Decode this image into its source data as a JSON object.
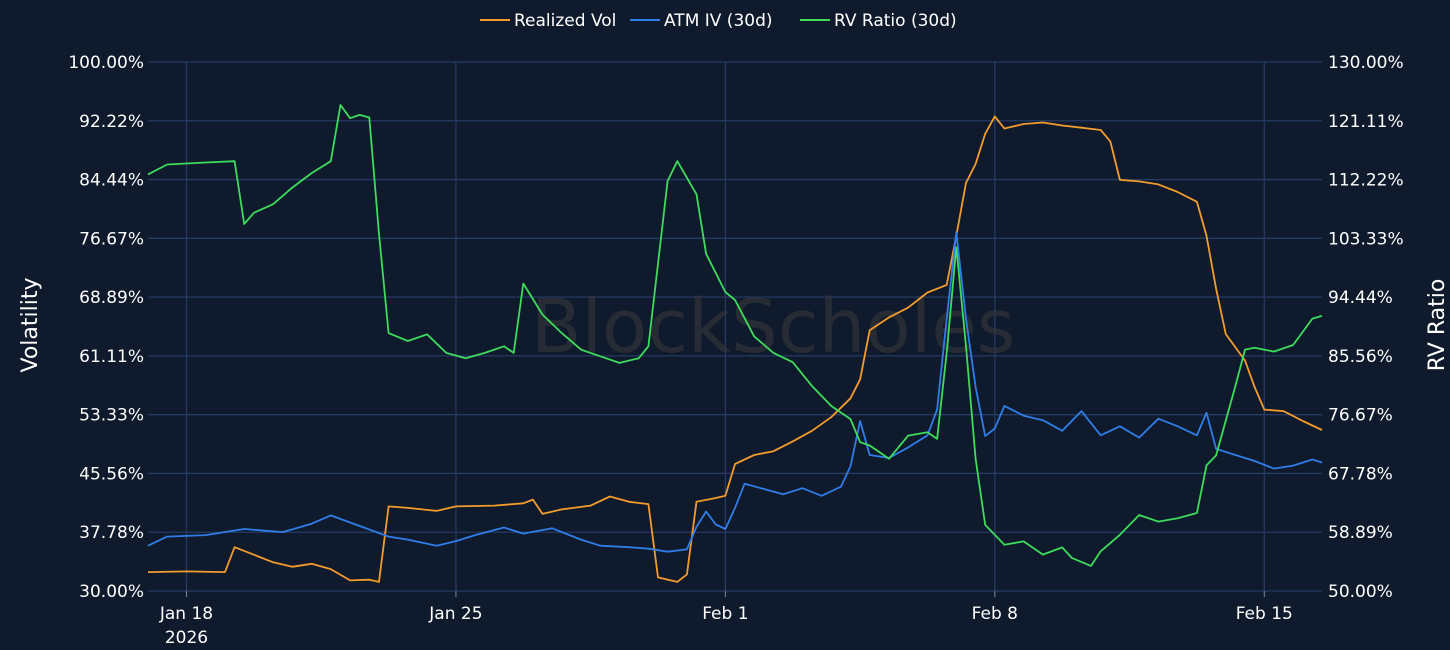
{
  "watermark": "BlockScholes",
  "chart_data": {
    "type": "line",
    "legend_position": "top-center",
    "grid": true,
    "x_range": [
      "2026-01-17T00:00",
      "2026-02-16T12:00"
    ],
    "x_ticks": [
      {
        "date": "2026-01-18",
        "label": "Jan 18",
        "sublabel": "2026"
      },
      {
        "date": "2026-01-25",
        "label": "Jan 25"
      },
      {
        "date": "2026-02-01",
        "label": "Feb 1"
      },
      {
        "date": "2026-02-08",
        "label": "Feb 8"
      },
      {
        "date": "2026-02-15",
        "label": "Feb 15"
      }
    ],
    "y_left": {
      "label": "Volatility",
      "range": [
        30,
        100
      ],
      "ticks": [
        "30.00%",
        "37.78%",
        "45.56%",
        "53.33%",
        "61.11%",
        "68.89%",
        "76.67%",
        "84.44%",
        "92.22%",
        "100.00%"
      ]
    },
    "y_right": {
      "label": "RV Ratio",
      "range": [
        50,
        130
      ],
      "ticks": [
        "50.00%",
        "58.89%",
        "67.78%",
        "76.67%",
        "85.56%",
        "94.44%",
        "103.33%",
        "112.22%",
        "121.11%",
        "130.00%"
      ]
    },
    "series": [
      {
        "name": "Realized Vol",
        "axis": "left",
        "color": "#f39c2c",
        "points": [
          [
            "2026-01-17T00:00",
            32.5
          ],
          [
            "2026-01-18T00:00",
            32.6
          ],
          [
            "2026-01-19T00:00",
            32.5
          ],
          [
            "2026-01-19T06:00",
            35.8
          ],
          [
            "2026-01-19T18:00",
            34.8
          ],
          [
            "2026-01-20T06:00",
            33.8
          ],
          [
            "2026-01-20T18:00",
            33.2
          ],
          [
            "2026-01-21T06:00",
            33.6
          ],
          [
            "2026-01-21T18:00",
            32.9
          ],
          [
            "2026-01-22T06:00",
            31.4
          ],
          [
            "2026-01-22T18:00",
            31.5
          ],
          [
            "2026-01-23T00:00",
            31.2
          ],
          [
            "2026-01-23T06:00",
            41.2
          ],
          [
            "2026-01-23T18:00",
            41.0
          ],
          [
            "2026-01-24T12:00",
            40.6
          ],
          [
            "2026-01-25T00:00",
            41.2
          ],
          [
            "2026-01-26T00:00",
            41.3
          ],
          [
            "2026-01-26T18:00",
            41.6
          ],
          [
            "2026-01-27T00:00",
            42.1
          ],
          [
            "2026-01-27T06:00",
            40.2
          ],
          [
            "2026-01-27T18:00",
            40.8
          ],
          [
            "2026-01-28T12:00",
            41.3
          ],
          [
            "2026-01-29T00:00",
            42.5
          ],
          [
            "2026-01-29T12:00",
            41.8
          ],
          [
            "2026-01-30T00:00",
            41.5
          ],
          [
            "2026-01-30T06:00",
            31.8
          ],
          [
            "2026-01-30T18:00",
            31.2
          ],
          [
            "2026-01-31T00:00",
            32.2
          ],
          [
            "2026-01-31T06:00",
            41.8
          ],
          [
            "2026-01-31T18:00",
            42.3
          ],
          [
            "2026-02-01T00:00",
            42.6
          ],
          [
            "2026-02-01T06:00",
            46.8
          ],
          [
            "2026-02-01T18:00",
            48.0
          ],
          [
            "2026-02-02T06:00",
            48.5
          ],
          [
            "2026-02-02T18:00",
            49.8
          ],
          [
            "2026-02-03T06:00",
            51.2
          ],
          [
            "2026-02-03T18:00",
            53.0
          ],
          [
            "2026-02-04T06:00",
            55.5
          ],
          [
            "2026-02-04T12:00",
            58.0
          ],
          [
            "2026-02-04T18:00",
            64.5
          ],
          [
            "2026-02-05T06:00",
            66.2
          ],
          [
            "2026-02-05T18:00",
            67.5
          ],
          [
            "2026-02-06T06:00",
            69.5
          ],
          [
            "2026-02-06T18:00",
            70.5
          ],
          [
            "2026-02-07T00:00",
            77.0
          ],
          [
            "2026-02-07T06:00",
            84.0
          ],
          [
            "2026-02-07T12:00",
            86.5
          ],
          [
            "2026-02-07T18:00",
            90.5
          ],
          [
            "2026-02-08T00:00",
            92.8
          ],
          [
            "2026-02-08T06:00",
            91.2
          ],
          [
            "2026-02-08T18:00",
            91.8
          ],
          [
            "2026-02-09T06:00",
            92.0
          ],
          [
            "2026-02-09T18:00",
            91.6
          ],
          [
            "2026-02-10T06:00",
            91.3
          ],
          [
            "2026-02-10T18:00",
            91.0
          ],
          [
            "2026-02-11T00:00",
            89.5
          ],
          [
            "2026-02-11T06:00",
            84.4
          ],
          [
            "2026-02-11T18:00",
            84.2
          ],
          [
            "2026-02-12T06:00",
            83.8
          ],
          [
            "2026-02-12T18:00",
            82.8
          ],
          [
            "2026-02-13T06:00",
            81.5
          ],
          [
            "2026-02-13T12:00",
            77.0
          ],
          [
            "2026-02-13T18:00",
            70.0
          ],
          [
            "2026-02-14T00:00",
            64.0
          ],
          [
            "2026-02-14T12:00",
            60.5
          ],
          [
            "2026-02-14T18:00",
            57.0
          ],
          [
            "2026-02-15T00:00",
            54.0
          ],
          [
            "2026-02-15T12:00",
            53.8
          ],
          [
            "2026-02-16T00:00",
            52.5
          ],
          [
            "2026-02-16T12:00",
            51.3
          ]
        ]
      },
      {
        "name": "ATM IV (30d)",
        "axis": "left",
        "color": "#2f7ee8",
        "points": [
          [
            "2026-01-17T00:00",
            36.0
          ],
          [
            "2026-01-17T12:00",
            37.2
          ],
          [
            "2026-01-18T12:00",
            37.4
          ],
          [
            "2026-01-19T12:00",
            38.2
          ],
          [
            "2026-01-20T12:00",
            37.8
          ],
          [
            "2026-01-21T06:00",
            38.9
          ],
          [
            "2026-01-21T18:00",
            40.0
          ],
          [
            "2026-01-22T12:00",
            38.6
          ],
          [
            "2026-01-23T06:00",
            37.2
          ],
          [
            "2026-01-23T18:00",
            36.8
          ],
          [
            "2026-01-24T12:00",
            36.0
          ],
          [
            "2026-01-25T00:00",
            36.6
          ],
          [
            "2026-01-25T12:00",
            37.4
          ],
          [
            "2026-01-26T06:00",
            38.4
          ],
          [
            "2026-01-26T18:00",
            37.6
          ],
          [
            "2026-01-27T12:00",
            38.3
          ],
          [
            "2026-01-28T06:00",
            36.8
          ],
          [
            "2026-01-28T18:00",
            36.0
          ],
          [
            "2026-01-29T12:00",
            35.8
          ],
          [
            "2026-01-30T00:00",
            35.6
          ],
          [
            "2026-01-30T12:00",
            35.2
          ],
          [
            "2026-01-31T00:00",
            35.5
          ],
          [
            "2026-01-31T06:00",
            38.5
          ],
          [
            "2026-01-31T12:00",
            40.5
          ],
          [
            "2026-01-31T18:00",
            38.8
          ],
          [
            "2026-02-01T00:00",
            38.2
          ],
          [
            "2026-02-01T06:00",
            41.0
          ],
          [
            "2026-02-01T12:00",
            44.2
          ],
          [
            "2026-02-02T00:00",
            43.5
          ],
          [
            "2026-02-02T12:00",
            42.8
          ],
          [
            "2026-02-03T00:00",
            43.6
          ],
          [
            "2026-02-03T12:00",
            42.6
          ],
          [
            "2026-02-04T00:00",
            43.8
          ],
          [
            "2026-02-04T06:00",
            46.5
          ],
          [
            "2026-02-04T12:00",
            52.5
          ],
          [
            "2026-02-04T18:00",
            48.0
          ],
          [
            "2026-02-05T06:00",
            47.6
          ],
          [
            "2026-02-05T18:00",
            49.0
          ],
          [
            "2026-02-06T06:00",
            50.6
          ],
          [
            "2026-02-06T12:00",
            54.0
          ],
          [
            "2026-02-06T18:00",
            66.0
          ],
          [
            "2026-02-07T00:00",
            77.5
          ],
          [
            "2026-02-07T06:00",
            66.0
          ],
          [
            "2026-02-07T12:00",
            57.0
          ],
          [
            "2026-02-07T18:00",
            50.5
          ],
          [
            "2026-02-08T00:00",
            51.5
          ],
          [
            "2026-02-08T06:00",
            54.5
          ],
          [
            "2026-02-08T18:00",
            53.2
          ],
          [
            "2026-02-09T06:00",
            52.6
          ],
          [
            "2026-02-09T18:00",
            51.2
          ],
          [
            "2026-02-10T06:00",
            53.8
          ],
          [
            "2026-02-10T18:00",
            50.6
          ],
          [
            "2026-02-11T06:00",
            51.8
          ],
          [
            "2026-02-11T18:00",
            50.3
          ],
          [
            "2026-02-12T06:00",
            52.8
          ],
          [
            "2026-02-12T18:00",
            51.8
          ],
          [
            "2026-02-13T06:00",
            50.6
          ],
          [
            "2026-02-13T12:00",
            53.6
          ],
          [
            "2026-02-13T18:00",
            48.8
          ],
          [
            "2026-02-14T06:00",
            48.0
          ],
          [
            "2026-02-14T18:00",
            47.2
          ],
          [
            "2026-02-15T06:00",
            46.2
          ],
          [
            "2026-02-15T18:00",
            46.6
          ],
          [
            "2026-02-16T06:00",
            47.4
          ],
          [
            "2026-02-16T12:00",
            47.0
          ]
        ]
      },
      {
        "name": "RV Ratio (30d)",
        "axis": "right",
        "color": "#3ddc5b",
        "points": [
          [
            "2026-01-17T00:00",
            113.0
          ],
          [
            "2026-01-17T12:00",
            114.5
          ],
          [
            "2026-01-18T12:00",
            114.8
          ],
          [
            "2026-01-19T06:00",
            115.0
          ],
          [
            "2026-01-19T12:00",
            105.5
          ],
          [
            "2026-01-19T18:00",
            107.2
          ],
          [
            "2026-01-20T06:00",
            108.5
          ],
          [
            "2026-01-20T18:00",
            111.0
          ],
          [
            "2026-01-21T06:00",
            113.2
          ],
          [
            "2026-01-21T18:00",
            115.0
          ],
          [
            "2026-01-22T00:00",
            123.5
          ],
          [
            "2026-01-22T06:00",
            121.5
          ],
          [
            "2026-01-22T12:00",
            122.0
          ],
          [
            "2026-01-22T18:00",
            121.6
          ],
          [
            "2026-01-23T00:00",
            104.0
          ],
          [
            "2026-01-23T06:00",
            89.0
          ],
          [
            "2026-01-23T18:00",
            87.8
          ],
          [
            "2026-01-24T06:00",
            88.8
          ],
          [
            "2026-01-24T18:00",
            86.0
          ],
          [
            "2026-01-25T06:00",
            85.2
          ],
          [
            "2026-01-25T18:00",
            86.0
          ],
          [
            "2026-01-26T06:00",
            87.0
          ],
          [
            "2026-01-26T12:00",
            86.0
          ],
          [
            "2026-01-26T18:00",
            96.5
          ],
          [
            "2026-01-27T06:00",
            91.8
          ],
          [
            "2026-01-27T18:00",
            89.0
          ],
          [
            "2026-01-28T06:00",
            86.5
          ],
          [
            "2026-01-28T18:00",
            85.5
          ],
          [
            "2026-01-29T06:00",
            84.5
          ],
          [
            "2026-01-29T18:00",
            85.2
          ],
          [
            "2026-01-30T00:00",
            87.0
          ],
          [
            "2026-01-30T06:00",
            99.5
          ],
          [
            "2026-01-30T12:00",
            112.0
          ],
          [
            "2026-01-30T18:00",
            115.0
          ],
          [
            "2026-01-31T06:00",
            110.0
          ],
          [
            "2026-01-31T12:00",
            101.0
          ],
          [
            "2026-02-01T00:00",
            95.2
          ],
          [
            "2026-02-01T06:00",
            94.0
          ],
          [
            "2026-02-01T18:00",
            88.5
          ],
          [
            "2026-02-02T06:00",
            86.0
          ],
          [
            "2026-02-02T18:00",
            84.6
          ],
          [
            "2026-02-03T06:00",
            81.0
          ],
          [
            "2026-02-03T18:00",
            78.0
          ],
          [
            "2026-02-04T06:00",
            76.0
          ],
          [
            "2026-02-04T12:00",
            72.5
          ],
          [
            "2026-02-04T18:00",
            72.0
          ],
          [
            "2026-02-05T06:00",
            70.0
          ],
          [
            "2026-02-05T18:00",
            73.5
          ],
          [
            "2026-02-06T06:00",
            74.0
          ],
          [
            "2026-02-06T12:00",
            73.0
          ],
          [
            "2026-02-06T18:00",
            86.0
          ],
          [
            "2026-02-07T00:00",
            102.0
          ],
          [
            "2026-02-07T06:00",
            87.0
          ],
          [
            "2026-02-07T12:00",
            70.0
          ],
          [
            "2026-02-07T18:00",
            60.0
          ],
          [
            "2026-02-08T06:00",
            57.0
          ],
          [
            "2026-02-08T18:00",
            57.5
          ],
          [
            "2026-02-09T06:00",
            55.5
          ],
          [
            "2026-02-09T18:00",
            56.6
          ],
          [
            "2026-02-10T00:00",
            55.0
          ],
          [
            "2026-02-10T12:00",
            53.8
          ],
          [
            "2026-02-10T18:00",
            56.0
          ],
          [
            "2026-02-11T06:00",
            58.5
          ],
          [
            "2026-02-11T18:00",
            61.5
          ],
          [
            "2026-02-12T06:00",
            60.5
          ],
          [
            "2026-02-12T18:00",
            61.0
          ],
          [
            "2026-02-13T06:00",
            61.8
          ],
          [
            "2026-02-13T12:00",
            69.0
          ],
          [
            "2026-02-13T18:00",
            70.5
          ],
          [
            "2026-02-14T06:00",
            81.0
          ],
          [
            "2026-02-14T12:00",
            86.5
          ],
          [
            "2026-02-14T18:00",
            86.8
          ],
          [
            "2026-02-15T06:00",
            86.2
          ],
          [
            "2026-02-15T18:00",
            87.2
          ],
          [
            "2026-02-16T06:00",
            91.2
          ],
          [
            "2026-02-16T12:00",
            91.6
          ]
        ]
      }
    ]
  }
}
